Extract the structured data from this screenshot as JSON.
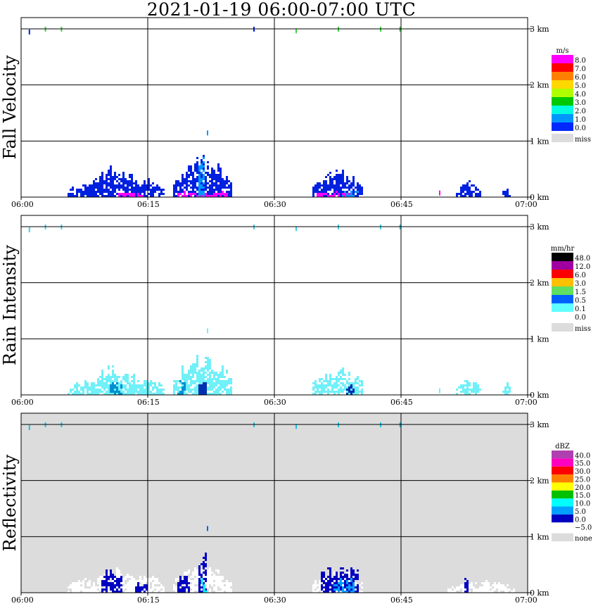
{
  "title": "2021-01-19   06:00-07:00 UTC",
  "chart_data": [
    {
      "type": "heatmap",
      "ylabel": "Fall Velocity",
      "unit": "m/s",
      "x_ticks": [
        "06:00",
        "06:15",
        "06:30",
        "06:45",
        "07:00"
      ],
      "y_ticks": [
        "0 km",
        "1 km",
        "2 km",
        "3 km"
      ],
      "background": "#ffffff",
      "legend": [
        {
          "label": "8.0",
          "color": "#ff00ff"
        },
        {
          "label": "7.0",
          "color": "#ff0000"
        },
        {
          "label": "6.0",
          "color": "#ff8000"
        },
        {
          "label": "5.0",
          "color": "#ffd800"
        },
        {
          "label": "4.0",
          "color": "#b0ff00"
        },
        {
          "label": "3.0",
          "color": "#00c800"
        },
        {
          "label": "2.0",
          "color": "#00ffe0"
        },
        {
          "label": "1.0",
          "color": "#0098ff"
        },
        {
          "label": "0.0",
          "color": "#0028ff"
        },
        {
          "label": "miss",
          "color": "#dcdcdc"
        }
      ],
      "legend_extra_colors": [
        "#0000b0"
      ],
      "echoes": [
        {
          "t0": 5.5,
          "t1": 9.0,
          "h": 0.25,
          "c": "#0020e0"
        },
        {
          "t0": 8.0,
          "t1": 14.0,
          "h": 0.55,
          "c": "#0020e0"
        },
        {
          "t0": 12.5,
          "t1": 17.0,
          "h": 0.35,
          "c": "#0020e0"
        },
        {
          "t0": 18.0,
          "t1": 25.0,
          "h": 0.75,
          "c": "#0020e0"
        },
        {
          "t0": 34.5,
          "t1": 40.5,
          "h": 0.5,
          "c": "#0020e0"
        },
        {
          "t0": 51.5,
          "t1": 54.5,
          "h": 0.28,
          "c": "#0020e0"
        },
        {
          "t0": 57.0,
          "t1": 58.0,
          "h": 0.2,
          "c": "#0020e0"
        }
      ],
      "accents": [
        {
          "t0": 11.5,
          "t1": 14.5,
          "h": 0.08,
          "c": "#ff00ff"
        },
        {
          "t0": 18.5,
          "t1": 24.5,
          "h": 0.08,
          "c": "#ff00ff"
        },
        {
          "t0": 35.0,
          "t1": 39.0,
          "h": 0.08,
          "c": "#ff00ff"
        },
        {
          "t0": 21.0,
          "t1": 21.6,
          "h": 0.8,
          "c": "#0098ff"
        },
        {
          "t0": 38.0,
          "t1": 40.0,
          "h": 0.1,
          "c": "#0098ff"
        }
      ],
      "aloft": [
        {
          "t": 0.9,
          "h": 2.95,
          "c": "#0020e0"
        },
        {
          "t": 2.8,
          "h": 3.0,
          "c": "#40d040"
        },
        {
          "t": 4.7,
          "h": 3.0,
          "c": "#40d040"
        },
        {
          "t": 27.5,
          "h": 3.0,
          "c": "#0020e0"
        },
        {
          "t": 32.5,
          "h": 2.97,
          "c": "#40d040"
        },
        {
          "t": 37.5,
          "h": 3.0,
          "c": "#40d040"
        },
        {
          "t": 42.5,
          "h": 3.0,
          "c": "#40d040"
        },
        {
          "t": 44.8,
          "h": 3.0,
          "c": "#40d040"
        },
        {
          "t": 22.0,
          "h": 1.15,
          "c": "#0098ff"
        },
        {
          "t": 49.5,
          "h": 0.08,
          "c": "#ff00ff"
        }
      ]
    },
    {
      "type": "heatmap",
      "ylabel": "Rain Intensity",
      "unit": "mm/hr",
      "x_ticks": [
        "06:00",
        "06:15",
        "06:30",
        "06:45",
        "07:00"
      ],
      "y_ticks": [
        "0 km",
        "1 km",
        "2 km",
        "3 km"
      ],
      "background": "#ffffff",
      "legend": [
        {
          "label": "48.0",
          "color": "#000000"
        },
        {
          "label": "12.0",
          "color": "#a000a0"
        },
        {
          "label": "6.0",
          "color": "#ff0000"
        },
        {
          "label": "3.0",
          "color": "#ffc000"
        },
        {
          "label": "1.5",
          "color": "#60e060"
        },
        {
          "label": "0.5",
          "color": "#0060ff"
        },
        {
          "label": "0.1",
          "color": "#60ffff"
        },
        {
          "label": "0.0",
          "color": "#ffffff"
        },
        {
          "label": "miss",
          "color": "#dcdcdc"
        }
      ],
      "legend_extra_colors": [
        "#400040",
        "#800080",
        "#ff00c0",
        "#ff6000",
        "#ffff00",
        "#00c000",
        "#0000e0",
        "#00a0ff",
        "#a0ffff"
      ],
      "echoes": [
        {
          "t0": 5.5,
          "t1": 9.0,
          "h": 0.25,
          "c": "#70f0f8"
        },
        {
          "t0": 8.0,
          "t1": 14.0,
          "h": 0.55,
          "c": "#70f0f8"
        },
        {
          "t0": 12.5,
          "t1": 17.0,
          "h": 0.35,
          "c": "#70f0f8"
        },
        {
          "t0": 18.0,
          "t1": 25.0,
          "h": 0.75,
          "c": "#70f0f8"
        },
        {
          "t0": 34.5,
          "t1": 40.5,
          "h": 0.5,
          "c": "#70f0f8"
        },
        {
          "t0": 51.5,
          "t1": 54.5,
          "h": 0.28,
          "c": "#70f0f8"
        },
        {
          "t0": 57.0,
          "t1": 58.0,
          "h": 0.2,
          "c": "#70f0f8"
        }
      ],
      "accents": [
        {
          "t0": 10.5,
          "t1": 12.0,
          "h": 0.2,
          "c": "#0090d0"
        },
        {
          "t0": 18.5,
          "t1": 19.5,
          "h": 0.25,
          "c": "#0090d0"
        },
        {
          "t0": 21.0,
          "t1": 21.8,
          "h": 0.3,
          "c": "#0030b0"
        },
        {
          "t0": 38.5,
          "t1": 39.3,
          "h": 0.2,
          "c": "#0030b0"
        }
      ],
      "aloft": [
        {
          "t": 0.9,
          "h": 2.95,
          "c": "#40d0e0"
        },
        {
          "t": 2.8,
          "h": 3.0,
          "c": "#40d0e0"
        },
        {
          "t": 4.7,
          "h": 3.0,
          "c": "#40d0e0"
        },
        {
          "t": 27.5,
          "h": 3.0,
          "c": "#40d0e0"
        },
        {
          "t": 32.5,
          "h": 2.97,
          "c": "#40d0e0"
        },
        {
          "t": 37.5,
          "h": 3.0,
          "c": "#40d0e0"
        },
        {
          "t": 42.5,
          "h": 3.0,
          "c": "#40d0e0"
        },
        {
          "t": 44.8,
          "h": 3.0,
          "c": "#40d0e0"
        },
        {
          "t": 22.0,
          "h": 1.15,
          "c": "#70f0f8"
        },
        {
          "t": 49.5,
          "h": 0.08,
          "c": "#70f0f8"
        }
      ]
    },
    {
      "type": "heatmap",
      "ylabel": "Reflectivity",
      "unit": "dBZ",
      "x_ticks": [
        "06:00",
        "06:15",
        "06:30",
        "06:45",
        "07:00"
      ],
      "y_ticks": [
        "0 km",
        "1 km",
        "2 km",
        "3 km"
      ],
      "background": "#dcdcdc",
      "legend": [
        {
          "label": "40.0",
          "color": "#b040b0"
        },
        {
          "label": "35.0",
          "color": "#ff00c0"
        },
        {
          "label": "30.0",
          "color": "#ff0000"
        },
        {
          "label": "25.0",
          "color": "#ff8000"
        },
        {
          "label": "20.0",
          "color": "#ffff00"
        },
        {
          "label": "15.0",
          "color": "#00c000"
        },
        {
          "label": "10.0",
          "color": "#00ffff"
        },
        {
          "label": "5.0",
          "color": "#00a0ff"
        },
        {
          "label": "0.0",
          "color": "#0000c0"
        },
        {
          "label": "−5.0",
          "color": "#ffffff"
        },
        {
          "label": "none",
          "color": "#dcdcdc"
        }
      ],
      "legend_extra_colors": [
        "#9000b0",
        "#e00000",
        "#ffb000"
      ],
      "echoes": [
        {
          "t0": 5.5,
          "t1": 9.0,
          "h": 0.25,
          "c": "#ffffff"
        },
        {
          "t0": 8.0,
          "t1": 14.0,
          "h": 0.45,
          "c": "#ffffff"
        },
        {
          "t0": 12.5,
          "t1": 17.0,
          "h": 0.3,
          "c": "#ffffff"
        },
        {
          "t0": 18.0,
          "t1": 25.0,
          "h": 0.55,
          "c": "#ffffff"
        },
        {
          "t0": 34.5,
          "t1": 40.5,
          "h": 0.4,
          "c": "#ffffff"
        },
        {
          "t0": 50.5,
          "t1": 58.5,
          "h": 0.2,
          "c": "#ffffff"
        }
      ],
      "accents": [
        {
          "t0": 9.5,
          "t1": 12.0,
          "h": 0.4,
          "c": "#0000c0"
        },
        {
          "t0": 13.5,
          "t1": 15.0,
          "h": 0.2,
          "c": "#0000c0"
        },
        {
          "t0": 18.5,
          "t1": 20.0,
          "h": 0.3,
          "c": "#0000c0"
        },
        {
          "t0": 21.0,
          "t1": 22.0,
          "h": 0.75,
          "c": "#0000c0"
        },
        {
          "t0": 21.3,
          "t1": 22.0,
          "h": 0.25,
          "c": "#00ffff"
        },
        {
          "t0": 35.5,
          "t1": 40.0,
          "h": 0.45,
          "c": "#0000c0"
        },
        {
          "t0": 37.0,
          "t1": 39.5,
          "h": 0.25,
          "c": "#00a0ff"
        },
        {
          "t0": 52.5,
          "t1": 53.0,
          "h": 0.25,
          "c": "#0000c0"
        }
      ],
      "aloft": [
        {
          "t": 0.9,
          "h": 2.95,
          "c": "#20c0e0"
        },
        {
          "t": 2.8,
          "h": 3.0,
          "c": "#20c0e0"
        },
        {
          "t": 4.7,
          "h": 3.0,
          "c": "#20c0e0"
        },
        {
          "t": 27.5,
          "h": 3.0,
          "c": "#20c0e0"
        },
        {
          "t": 32.5,
          "h": 2.97,
          "c": "#20c0e0"
        },
        {
          "t": 37.5,
          "h": 3.0,
          "c": "#20c0e0"
        },
        {
          "t": 42.5,
          "h": 3.0,
          "c": "#20c0e0"
        },
        {
          "t": 44.8,
          "h": 3.0,
          "c": "#20c0e0"
        },
        {
          "t": 22.0,
          "h": 1.15,
          "c": "#0060ff"
        }
      ]
    }
  ]
}
